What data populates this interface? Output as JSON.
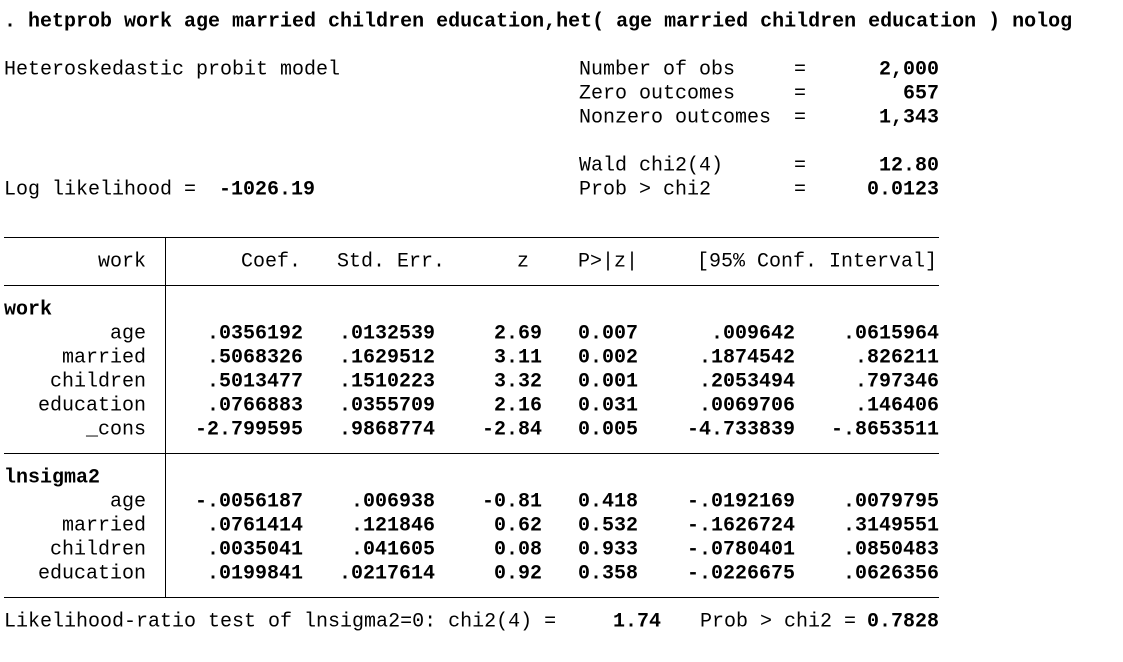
{
  "command": ". hetprob work age married children education,het( age married children education ) nolog",
  "header": {
    "model": "Heteroskedastic probit model",
    "stats": [
      {
        "label": "Number of obs",
        "eq": "=",
        "value": "2,000"
      },
      {
        "label": "Zero outcomes",
        "eq": "=",
        "value": "657"
      },
      {
        "label": "Nonzero outcomes",
        "eq": "=",
        "value": "1,343"
      },
      {
        "label": "Wald chi2(4)",
        "eq": "=",
        "value": "12.80"
      },
      {
        "label": "Prob > chi2",
        "eq": "=",
        "value": "0.0123"
      }
    ],
    "log_likelihood": {
      "label": "Log likelihood =",
      "value": "-1026.19"
    }
  },
  "table": {
    "columns": [
      "work",
      "Coef.",
      "Std. Err.",
      "z",
      "P>|z|",
      "[95% Conf. Interval]"
    ],
    "groups": [
      {
        "name": "work",
        "rows": [
          [
            "age",
            ".0356192",
            ".0132539",
            "2.69",
            "0.007",
            ".009642",
            ".0615964"
          ],
          [
            "married",
            ".5068326",
            ".1629512",
            "3.11",
            "0.002",
            ".1874542",
            ".826211"
          ],
          [
            "children",
            ".5013477",
            ".1510223",
            "3.32",
            "0.001",
            ".2053494",
            ".797346"
          ],
          [
            "education",
            ".0766883",
            ".0355709",
            "2.16",
            "0.031",
            ".0069706",
            ".146406"
          ],
          [
            "_cons",
            "-2.799595",
            ".9868774",
            "-2.84",
            "0.005",
            "-4.733839",
            "-.8653511"
          ]
        ]
      },
      {
        "name": "lnsigma2",
        "rows": [
          [
            "age",
            "-.0056187",
            ".006938",
            "-0.81",
            "0.418",
            "-.0192169",
            ".0079795"
          ],
          [
            "married",
            ".0761414",
            ".121846",
            "0.62",
            "0.532",
            "-.1626724",
            ".3149551"
          ],
          [
            "children",
            ".0035041",
            ".041605",
            "0.08",
            "0.933",
            "-.0780401",
            ".0850483"
          ],
          [
            "education",
            ".0199841",
            ".0217614",
            "0.92",
            "0.358",
            "-.0226675",
            ".0626356"
          ]
        ]
      }
    ]
  },
  "footer": {
    "test": "Likelihood-ratio test of lnsigma2=0: chi2(4) =",
    "chi2": "1.74",
    "prob_label": "Prob > chi2 =",
    "prob": "0.7828"
  }
}
